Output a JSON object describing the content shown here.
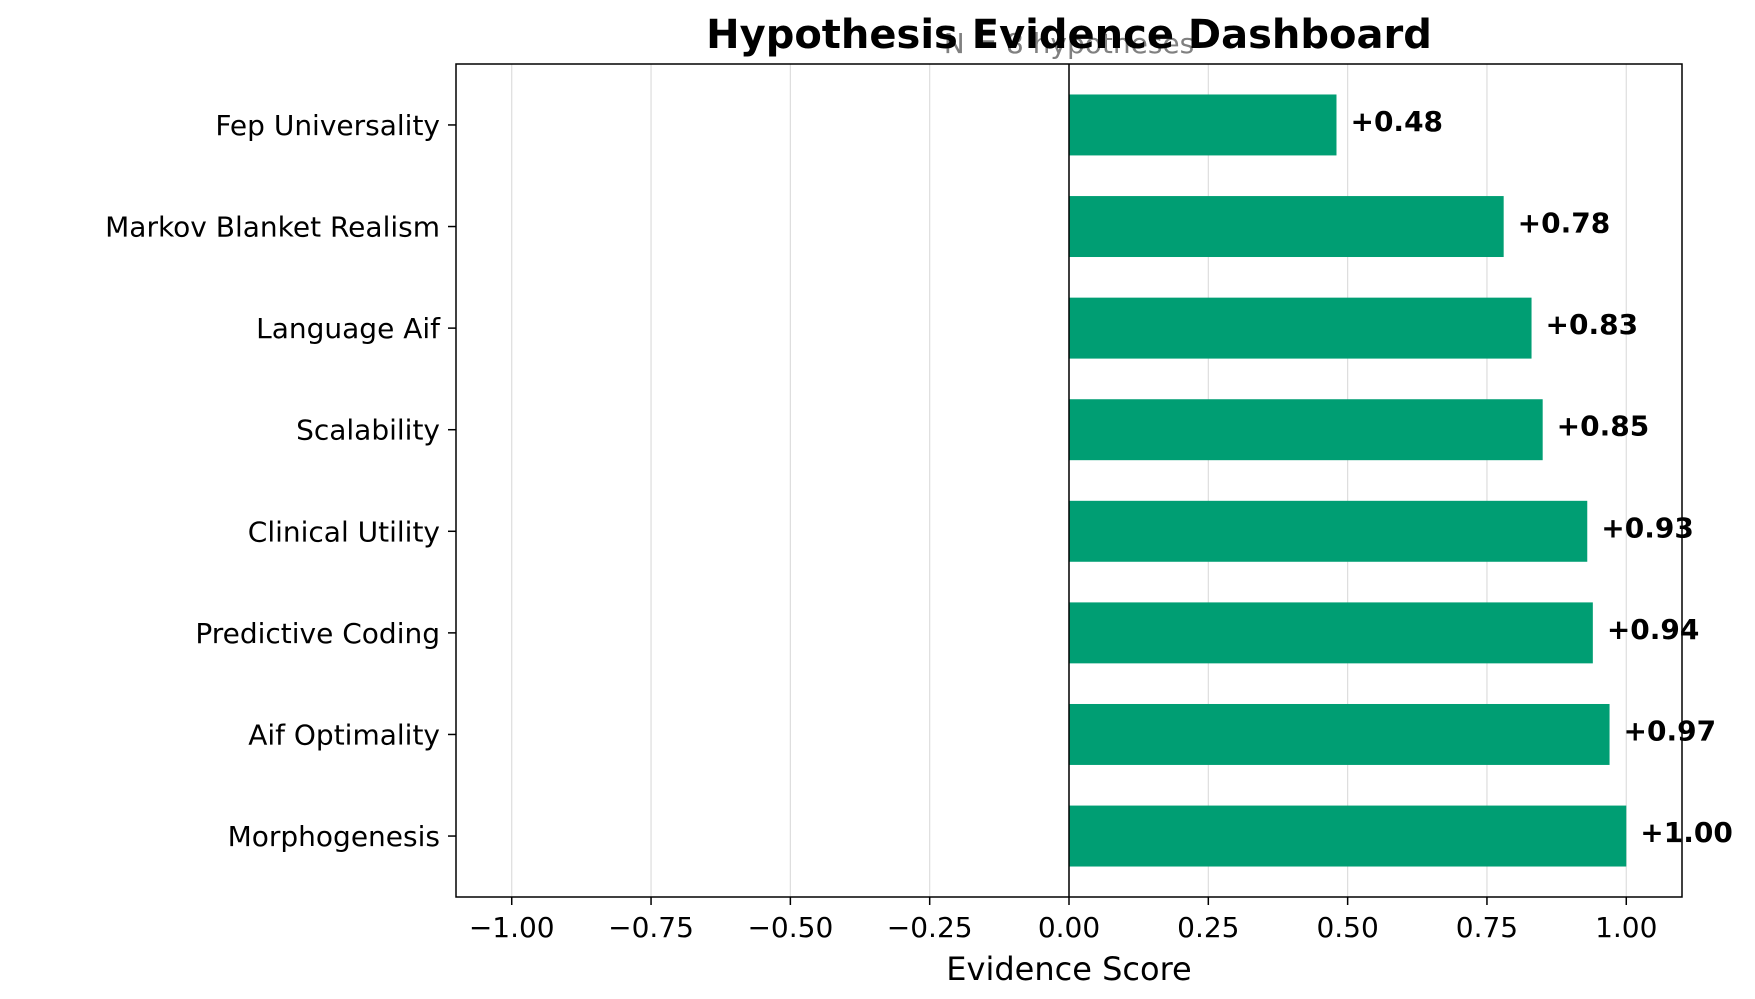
{
  "chart_data": {
    "type": "bar",
    "orientation": "horizontal",
    "title": "Hypothesis Evidence Dashboard",
    "subtitle": "N = 8 hypotheses",
    "xlabel": "Evidence Score",
    "ylabel": "",
    "xlim": [
      -1.1,
      1.1
    ],
    "x_ticks": [
      -1.0,
      -0.75,
      -0.5,
      -0.25,
      0.0,
      0.25,
      0.5,
      0.75,
      1.0
    ],
    "x_tick_labels": [
      "−1.00",
      "−0.75",
      "−0.50",
      "−0.25",
      "0.00",
      "0.25",
      "0.50",
      "0.75",
      "1.00"
    ],
    "categories": [
      "Fep Universality",
      "Markov Blanket Realism",
      "Language Aif",
      "Scalability",
      "Clinical Utility",
      "Predictive Coding",
      "Aif Optimality",
      "Morphogenesis"
    ],
    "values": [
      0.48,
      0.78,
      0.83,
      0.85,
      0.93,
      0.94,
      0.97,
      1.0
    ],
    "data_labels": [
      "+0.48",
      "+0.78",
      "+0.83",
      "+0.85",
      "+0.93",
      "+0.94",
      "+0.97",
      "+1.00"
    ],
    "grid": "vertical",
    "bar_color": "#009e73",
    "zero_line": true
  }
}
